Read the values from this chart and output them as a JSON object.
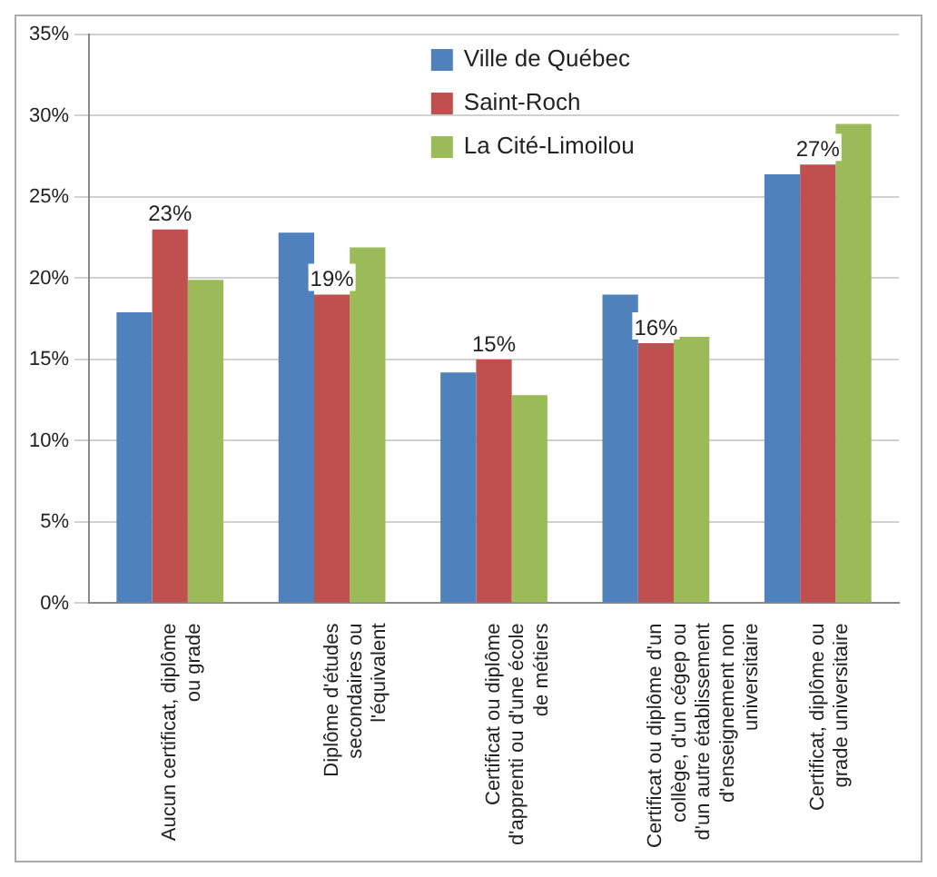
{
  "chart_data": {
    "type": "bar",
    "categories": [
      "Aucun certificat, diplôme ou grade",
      "Diplôme d'études secondaires ou l'équivalent",
      "Certificat ou diplôme d'apprenti ou d'une école de métiers",
      "Certificat ou diplôme d'un collège, d'un cégep ou d'un autre établissement d'enseignement non universitaire",
      "Certificat, diplôme ou grade universitaire"
    ],
    "series": [
      {
        "name": "Ville de Québec",
        "color": "#4f81bd",
        "values": [
          17.9,
          22.8,
          14.2,
          19.0,
          26.4
        ]
      },
      {
        "name": "Saint-Roch",
        "color": "#c0504d",
        "values": [
          23,
          19,
          15,
          16,
          27
        ],
        "value_labels": [
          "23%",
          "19%",
          "15%",
          "16%",
          "27%"
        ]
      },
      {
        "name": "La Cité-Limoilou",
        "color": "#9bbb59",
        "values": [
          19.9,
          21.9,
          12.8,
          16.4,
          29.5
        ]
      }
    ],
    "ylim": [
      0,
      35
    ],
    "yticks": [
      {
        "value": 0,
        "label": "0%"
      },
      {
        "value": 5,
        "label": "5%"
      },
      {
        "value": 10,
        "label": "10%"
      },
      {
        "value": 15,
        "label": "15%"
      },
      {
        "value": 20,
        "label": "20%"
      },
      {
        "value": 25,
        "label": "25%"
      },
      {
        "value": 30,
        "label": "30%"
      },
      {
        "value": 35,
        "label": "35%"
      }
    ],
    "grid": "y",
    "legend": "top"
  }
}
